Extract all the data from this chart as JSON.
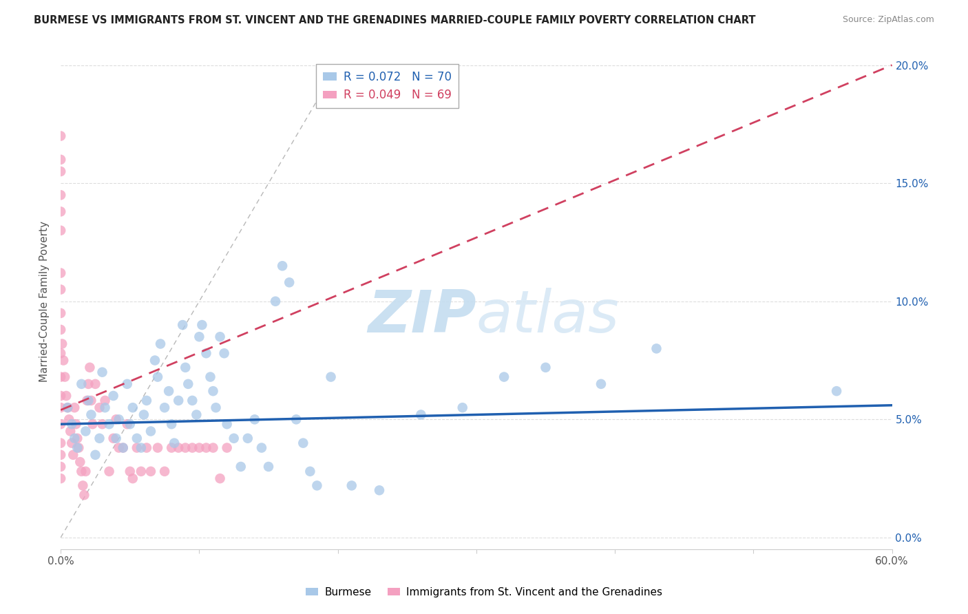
{
  "title": "BURMESE VS IMMIGRANTS FROM ST. VINCENT AND THE GRENADINES MARRIED-COUPLE FAMILY POVERTY CORRELATION CHART",
  "source": "Source: ZipAtlas.com",
  "ylabel": "Married-Couple Family Poverty",
  "xlim": [
    0.0,
    0.6
  ],
  "ylim": [
    -0.005,
    0.205
  ],
  "xticks": [
    0.0,
    0.1,
    0.2,
    0.3,
    0.4,
    0.5,
    0.6
  ],
  "yticks": [
    0.0,
    0.05,
    0.1,
    0.15,
    0.2
  ],
  "xtick_labels": [
    "0.0%",
    "",
    "",
    "",
    "",
    "",
    "60.0%"
  ],
  "ytick_labels_right": [
    "0.0%",
    "5.0%",
    "10.0%",
    "15.0%",
    "20.0%"
  ],
  "blue_R": 0.072,
  "blue_N": 70,
  "pink_R": 0.049,
  "pink_N": 69,
  "blue_color": "#a8c8e8",
  "pink_color": "#f4a0c0",
  "blue_line_color": "#2060b0",
  "pink_line_color": "#d04060",
  "ref_line_color": "#b8b8b8",
  "legend_label_blue": "Burmese",
  "legend_label_pink": "Immigrants from St. Vincent and the Grenadines",
  "blue_x": [
    0.005,
    0.008,
    0.01,
    0.012,
    0.015,
    0.018,
    0.02,
    0.022,
    0.025,
    0.028,
    0.03,
    0.032,
    0.035,
    0.038,
    0.04,
    0.042,
    0.045,
    0.048,
    0.05,
    0.052,
    0.055,
    0.058,
    0.06,
    0.062,
    0.065,
    0.068,
    0.07,
    0.072,
    0.075,
    0.078,
    0.08,
    0.082,
    0.085,
    0.088,
    0.09,
    0.092,
    0.095,
    0.098,
    0.1,
    0.102,
    0.105,
    0.108,
    0.11,
    0.112,
    0.115,
    0.118,
    0.12,
    0.125,
    0.13,
    0.135,
    0.14,
    0.145,
    0.15,
    0.155,
    0.16,
    0.165,
    0.17,
    0.175,
    0.18,
    0.185,
    0.195,
    0.21,
    0.23,
    0.26,
    0.29,
    0.32,
    0.35,
    0.39,
    0.43,
    0.56
  ],
  "blue_y": [
    0.055,
    0.048,
    0.042,
    0.038,
    0.065,
    0.045,
    0.058,
    0.052,
    0.035,
    0.042,
    0.07,
    0.055,
    0.048,
    0.06,
    0.042,
    0.05,
    0.038,
    0.065,
    0.048,
    0.055,
    0.042,
    0.038,
    0.052,
    0.058,
    0.045,
    0.075,
    0.068,
    0.082,
    0.055,
    0.062,
    0.048,
    0.04,
    0.058,
    0.09,
    0.072,
    0.065,
    0.058,
    0.052,
    0.085,
    0.09,
    0.078,
    0.068,
    0.062,
    0.055,
    0.085,
    0.078,
    0.048,
    0.042,
    0.03,
    0.042,
    0.05,
    0.038,
    0.03,
    0.1,
    0.115,
    0.108,
    0.05,
    0.04,
    0.028,
    0.022,
    0.068,
    0.022,
    0.02,
    0.052,
    0.055,
    0.068,
    0.072,
    0.065,
    0.08,
    0.062
  ],
  "pink_x": [
    0.0,
    0.0,
    0.0,
    0.0,
    0.0,
    0.0,
    0.0,
    0.0,
    0.0,
    0.0,
    0.0,
    0.0,
    0.0,
    0.0,
    0.0,
    0.0,
    0.0,
    0.0,
    0.0,
    0.001,
    0.002,
    0.003,
    0.004,
    0.005,
    0.006,
    0.007,
    0.008,
    0.009,
    0.01,
    0.011,
    0.012,
    0.013,
    0.014,
    0.015,
    0.016,
    0.017,
    0.018,
    0.019,
    0.02,
    0.021,
    0.022,
    0.023,
    0.025,
    0.028,
    0.03,
    0.032,
    0.035,
    0.038,
    0.04,
    0.042,
    0.045,
    0.048,
    0.05,
    0.052,
    0.055,
    0.058,
    0.062,
    0.065,
    0.07,
    0.075,
    0.08,
    0.085,
    0.09,
    0.095,
    0.1,
    0.105,
    0.11,
    0.115,
    0.12
  ],
  "pink_y": [
    0.17,
    0.16,
    0.155,
    0.145,
    0.138,
    0.13,
    0.112,
    0.105,
    0.095,
    0.088,
    0.078,
    0.068,
    0.06,
    0.055,
    0.048,
    0.04,
    0.035,
    0.03,
    0.025,
    0.082,
    0.075,
    0.068,
    0.06,
    0.055,
    0.05,
    0.045,
    0.04,
    0.035,
    0.055,
    0.048,
    0.042,
    0.038,
    0.032,
    0.028,
    0.022,
    0.018,
    0.028,
    0.058,
    0.065,
    0.072,
    0.058,
    0.048,
    0.065,
    0.055,
    0.048,
    0.058,
    0.028,
    0.042,
    0.05,
    0.038,
    0.038,
    0.048,
    0.028,
    0.025,
    0.038,
    0.028,
    0.038,
    0.028,
    0.038,
    0.028,
    0.038,
    0.038,
    0.038,
    0.038,
    0.038,
    0.038,
    0.038,
    0.025,
    0.038
  ],
  "watermark_zip": "ZIP",
  "watermark_atlas": "atlas",
  "bg_color": "#ffffff",
  "grid_color": "#dddddd"
}
